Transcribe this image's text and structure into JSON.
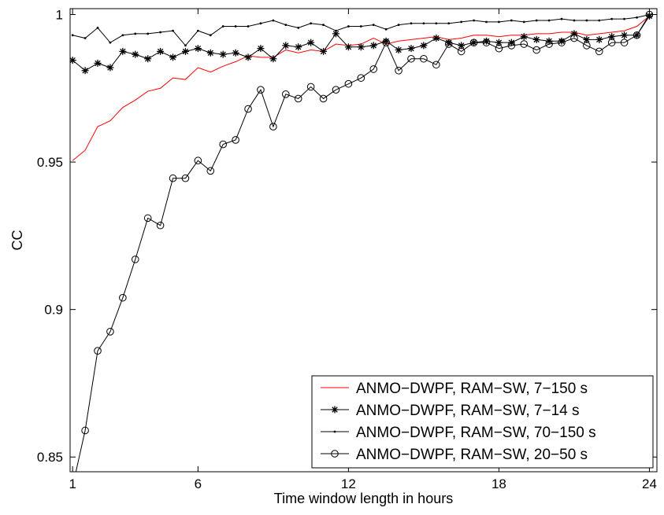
{
  "chart_data": {
    "type": "line",
    "title": "",
    "xlabel": "Time window length in hours",
    "ylabel": "CC",
    "xlim": [
      0.9,
      24.3
    ],
    "ylim": [
      0.845,
      1.002
    ],
    "xticks": [
      1,
      6,
      12,
      18,
      24
    ],
    "yticks": [
      0.85,
      0.9,
      0.95,
      1
    ],
    "yticklabels": [
      "0.85",
      "0.9",
      "0.95",
      "1"
    ],
    "grid": false,
    "legend": "bottom-right",
    "series": [
      {
        "name": "ANMO−DWPF, RAM−SW, 7−150 s",
        "color": "#ff0000",
        "marker": "none",
        "x": [
          1,
          1.5,
          2,
          2.5,
          3,
          3.5,
          4,
          4.5,
          5,
          5.5,
          6,
          6.5,
          7,
          7.5,
          8,
          8.5,
          9,
          9.5,
          10,
          10.5,
          11,
          11.5,
          12,
          12.5,
          13,
          13.5,
          14,
          14.5,
          15,
          15.5,
          16,
          16.5,
          17,
          17.5,
          18,
          18.5,
          19,
          19.5,
          20,
          20.5,
          21,
          21.5,
          22,
          22.5,
          23,
          23.5,
          24
        ],
        "y": [
          0.9505,
          0.954,
          0.962,
          0.964,
          0.9685,
          0.971,
          0.974,
          0.975,
          0.9785,
          0.978,
          0.982,
          0.9805,
          0.9825,
          0.984,
          0.986,
          0.9855,
          0.9855,
          0.988,
          0.987,
          0.988,
          0.9875,
          0.99,
          0.9895,
          0.99,
          0.992,
          0.99,
          0.991,
          0.9915,
          0.992,
          0.9925,
          0.9915,
          0.992,
          0.993,
          0.993,
          0.9925,
          0.993,
          0.993,
          0.9935,
          0.9935,
          0.994,
          0.994,
          0.993,
          0.9935,
          0.994,
          0.9945,
          0.996,
          0.9995
        ]
      },
      {
        "name": "ANMO−DWPF, RAM−SW, 7−14 s",
        "color": "#000000",
        "marker": "star",
        "x": [
          1,
          1.5,
          2,
          2.5,
          3,
          3.5,
          4,
          4.5,
          5,
          5.5,
          6,
          6.5,
          7,
          7.5,
          8,
          8.5,
          9,
          9.5,
          10,
          10.5,
          11,
          11.5,
          12,
          12.5,
          13,
          13.5,
          14,
          14.5,
          15,
          15.5,
          16,
          16.5,
          17,
          17.5,
          18,
          18.5,
          19,
          19.5,
          20,
          20.5,
          21,
          21.5,
          22,
          22.5,
          23,
          23.5,
          24
        ],
        "y": [
          0.9845,
          0.981,
          0.9835,
          0.982,
          0.9875,
          0.9865,
          0.985,
          0.9875,
          0.9855,
          0.9875,
          0.9885,
          0.987,
          0.9865,
          0.987,
          0.9855,
          0.9885,
          0.985,
          0.9895,
          0.989,
          0.9905,
          0.9875,
          0.9935,
          0.989,
          0.989,
          0.9895,
          0.991,
          0.988,
          0.9885,
          0.9895,
          0.992,
          0.9905,
          0.9895,
          0.9905,
          0.991,
          0.9905,
          0.9905,
          0.9925,
          0.9915,
          0.991,
          0.991,
          0.9935,
          0.9915,
          0.9915,
          0.9925,
          0.993,
          0.993,
          0.9995
        ]
      },
      {
        "name": "ANMO−DWPF, RAM−SW, 70−150 s",
        "color": "#000000",
        "marker": "dot",
        "x": [
          1,
          1.5,
          2,
          2.5,
          3,
          3.5,
          4,
          4.5,
          5,
          5.5,
          6,
          6.5,
          7,
          7.5,
          8,
          8.5,
          9,
          9.5,
          10,
          10.5,
          11,
          11.5,
          12,
          12.5,
          13,
          13.5,
          14,
          14.5,
          15,
          15.5,
          16,
          16.5,
          17,
          17.5,
          18,
          18.5,
          19,
          19.5,
          20,
          20.5,
          21,
          21.5,
          22,
          22.5,
          23,
          23.5,
          24
        ],
        "y": [
          0.993,
          0.992,
          0.9955,
          0.9905,
          0.993,
          0.9935,
          0.9935,
          0.994,
          0.9945,
          0.9895,
          0.9945,
          0.993,
          0.996,
          0.996,
          0.996,
          0.997,
          0.998,
          0.9965,
          0.9955,
          0.997,
          0.9965,
          0.9945,
          0.996,
          0.996,
          0.9965,
          0.995,
          0.9965,
          0.997,
          0.997,
          0.997,
          0.997,
          0.9975,
          0.998,
          0.9975,
          0.9975,
          0.998,
          0.9975,
          0.998,
          0.998,
          0.9985,
          0.998,
          0.998,
          0.998,
          0.9985,
          0.9985,
          0.999,
          1.0
        ]
      },
      {
        "name": "ANMO−DWPF, RAM−SW, 20−50 s",
        "color": "#000000",
        "marker": "circle",
        "x": [
          1,
          1.5,
          2,
          2.5,
          3,
          3.5,
          4,
          4.5,
          5,
          5.5,
          6,
          6.5,
          7,
          7.5,
          8,
          8.5,
          9,
          9.5,
          10,
          10.5,
          11,
          11.5,
          12,
          12.5,
          13,
          13.5,
          14,
          14.5,
          15,
          15.5,
          16,
          16.5,
          17,
          17.5,
          18,
          18.5,
          19,
          19.5,
          20,
          20.5,
          21,
          21.5,
          22,
          22.5,
          23,
          23.5,
          24
        ],
        "y": [
          0.84,
          0.859,
          0.886,
          0.8925,
          0.904,
          0.917,
          0.931,
          0.9285,
          0.9445,
          0.9445,
          0.9505,
          0.947,
          0.956,
          0.9575,
          0.968,
          0.9745,
          0.962,
          0.973,
          0.9715,
          0.9755,
          0.9715,
          0.9745,
          0.9765,
          0.9785,
          0.9815,
          0.9905,
          0.981,
          0.985,
          0.985,
          0.983,
          0.99,
          0.9875,
          0.9905,
          0.9905,
          0.9885,
          0.9895,
          0.99,
          0.988,
          0.99,
          0.9905,
          0.992,
          0.9895,
          0.9875,
          0.9905,
          0.9905,
          0.993,
          1.0
        ]
      }
    ]
  }
}
